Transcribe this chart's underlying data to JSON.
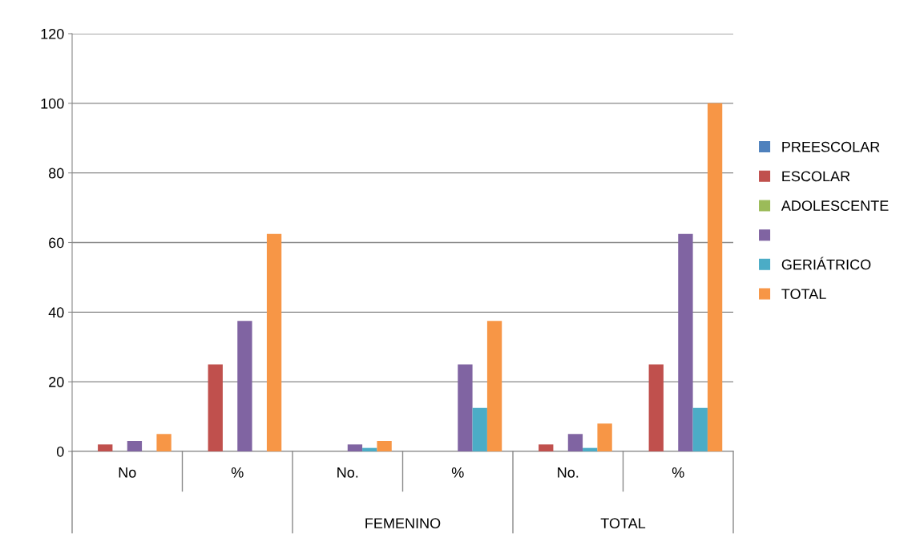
{
  "chart_data": {
    "type": "bar",
    "categories": [
      "No",
      "%",
      "No.",
      "%",
      "No.",
      "%"
    ],
    "series": [
      {
        "name": "PREESCOLAR",
        "color": "#4f81bd",
        "values": [
          0,
          0,
          0,
          0,
          0,
          0
        ]
      },
      {
        "name": "ESCOLAR",
        "color": "#c0504d",
        "values": [
          2,
          25,
          0,
          0,
          2,
          25
        ]
      },
      {
        "name": "ADOLESCENTE",
        "color": "#9bbb59",
        "values": [
          0,
          0,
          0,
          0,
          0,
          0
        ]
      },
      {
        "color": "#8064a2",
        "values": [
          3,
          37.5,
          2,
          25,
          5,
          62.5
        ]
      },
      {
        "name": "GERIÁTRICO",
        "color": "#4bacc6",
        "values": [
          0,
          0,
          1,
          12.5,
          1,
          12.5
        ]
      },
      {
        "name": "TOTAL",
        "color": "#f79646",
        "values": [
          5,
          62.5,
          3,
          37.5,
          8,
          100
        ]
      }
    ],
    "annotations": [
      "FEMENINO",
      "TOTAL"
    ],
    "ylim": [
      0,
      120
    ],
    "yticks": [
      0,
      20,
      40,
      60,
      80,
      100,
      120
    ],
    "grid": "y",
    "legend": "right"
  }
}
